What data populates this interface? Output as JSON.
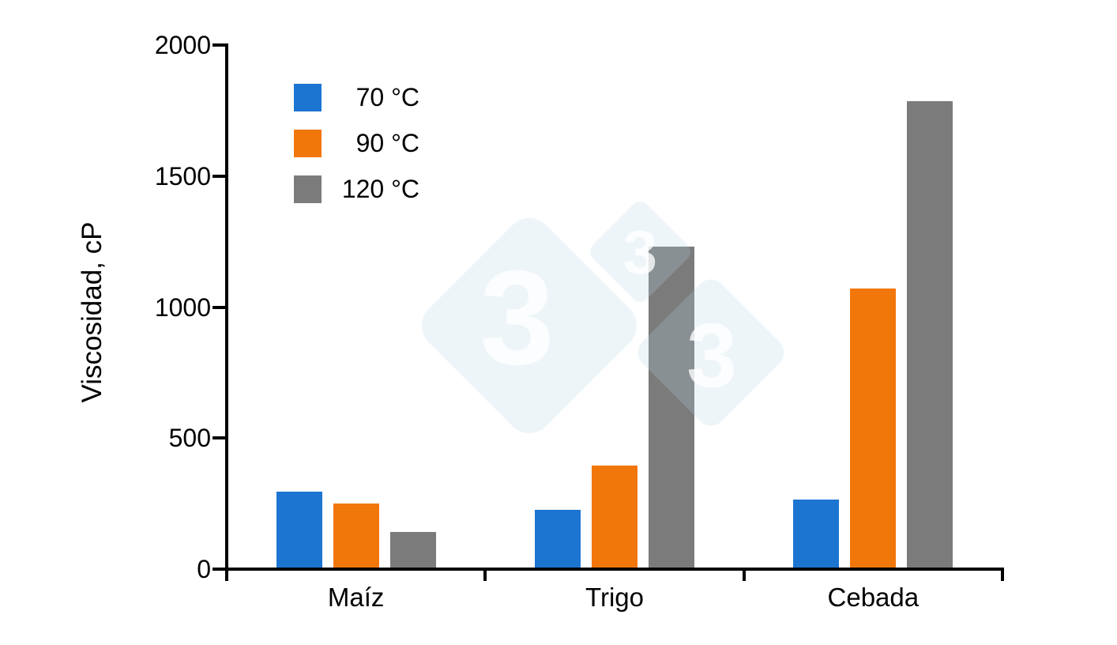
{
  "chart_data": {
    "type": "bar",
    "title": "",
    "xlabel": "",
    "ylabel": "Viscosidad, cP",
    "ylim": [
      0,
      2000
    ],
    "yticks": [
      0,
      500,
      1000,
      1500,
      2000
    ],
    "grid": false,
    "legend_position": "top-left-inside",
    "categories": [
      "Maíz",
      "Trigo",
      "Cebada"
    ],
    "series": [
      {
        "name": "70 °C",
        "color": "#1B75D1",
        "values": [
          290,
          220,
          260
        ]
      },
      {
        "name": "90 °C",
        "color": "#F2770B",
        "values": [
          245,
          390,
          1065
        ]
      },
      {
        "name": "120 °C",
        "color": "#7B7B7B",
        "values": [
          135,
          1225,
          1780
        ]
      }
    ],
    "axis_color": "#000000",
    "background_color": "#FFFFFF"
  },
  "watermark": {
    "glyph": "3",
    "diamond_fill": "rgba(186,212,232,0.24)",
    "glyph_fill": "rgba(255,255,255,0.78)"
  }
}
